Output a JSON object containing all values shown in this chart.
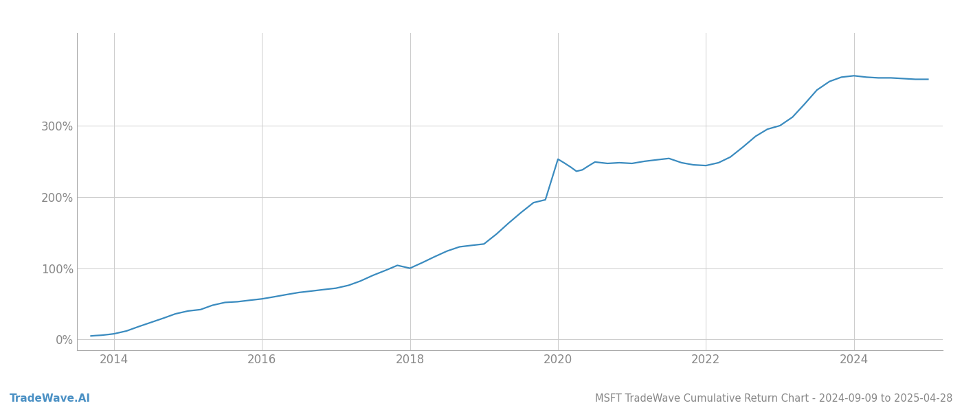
{
  "title": "MSFT TradeWave Cumulative Return Chart - 2024-09-09 to 2025-04-28",
  "watermark": "TradeWave.AI",
  "line_color": "#3a8bbf",
  "background_color": "#ffffff",
  "grid_color": "#cccccc",
  "axis_color": "#aaaaaa",
  "text_color": "#888888",
  "watermark_color": "#4a90c4",
  "x_years": [
    2013.69,
    2013.75,
    2013.83,
    2013.92,
    2014.0,
    2014.17,
    2014.33,
    2014.5,
    2014.67,
    2014.83,
    2015.0,
    2015.17,
    2015.33,
    2015.5,
    2015.67,
    2015.83,
    2016.0,
    2016.17,
    2016.33,
    2016.5,
    2016.67,
    2016.83,
    2017.0,
    2017.17,
    2017.33,
    2017.5,
    2017.67,
    2017.83,
    2018.0,
    2018.17,
    2018.33,
    2018.5,
    2018.67,
    2018.83,
    2019.0,
    2019.17,
    2019.33,
    2019.5,
    2019.67,
    2019.83,
    2020.0,
    2020.08,
    2020.17,
    2020.25,
    2020.33,
    2020.42,
    2020.5,
    2020.67,
    2020.83,
    2021.0,
    2021.17,
    2021.33,
    2021.5,
    2021.67,
    2021.83,
    2022.0,
    2022.17,
    2022.33,
    2022.5,
    2022.67,
    2022.83,
    2023.0,
    2023.17,
    2023.33,
    2023.5,
    2023.67,
    2023.83,
    2024.0,
    2024.17,
    2024.33,
    2024.5,
    2024.67,
    2024.83,
    2025.0
  ],
  "y_values": [
    5,
    5.5,
    6,
    7,
    8,
    12,
    18,
    24,
    30,
    36,
    40,
    42,
    48,
    52,
    53,
    55,
    57,
    60,
    63,
    66,
    68,
    70,
    72,
    76,
    82,
    90,
    97,
    104,
    100,
    108,
    116,
    124,
    130,
    132,
    134,
    148,
    163,
    178,
    192,
    196,
    253,
    248,
    242,
    236,
    238,
    244,
    249,
    247,
    248,
    247,
    250,
    252,
    254,
    248,
    245,
    244,
    248,
    256,
    270,
    285,
    295,
    300,
    312,
    330,
    350,
    362,
    368,
    370,
    368,
    367,
    367,
    366,
    365,
    365
  ],
  "xlim": [
    2013.5,
    2025.2
  ],
  "ylim": [
    -15,
    430
  ],
  "yticks": [
    0,
    100,
    200,
    300
  ],
  "xticks": [
    2014,
    2016,
    2018,
    2020,
    2022,
    2024
  ],
  "title_fontsize": 10.5,
  "watermark_fontsize": 11,
  "tick_fontsize": 12,
  "line_width": 1.6
}
